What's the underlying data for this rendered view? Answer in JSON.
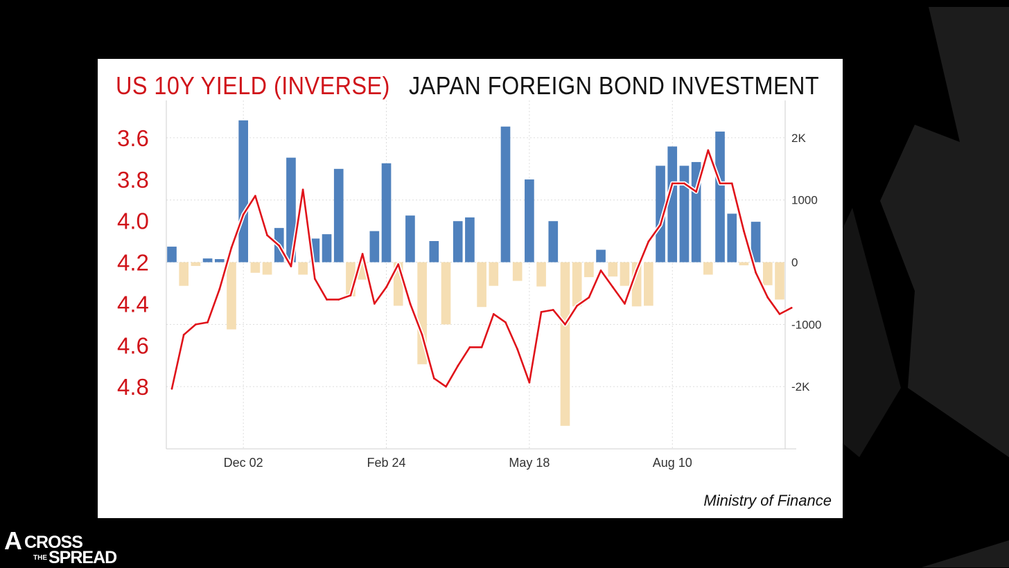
{
  "titles": {
    "left": "US 10Y YIELD (INVERSE)",
    "right": "JAPAN FOREIGN BOND INVESTMENT"
  },
  "source": "Ministry of Finance",
  "logo": {
    "a": "A",
    "cross": "CROSS",
    "the": "THE",
    "spread": "SPREAD"
  },
  "colors": {
    "positive_bar": "#4f81bd",
    "negative_bar": "#f5deb3",
    "yield_line": "#e0131a",
    "left_axis_text": "#d0141a"
  },
  "chart_data": {
    "type": "bar",
    "title": "JAPAN FOREIGN BOND INVESTMENT",
    "xlabel": "",
    "ylabel": "",
    "x_ticks": [
      "Dec 02",
      "Feb 24",
      "May 18",
      "Aug 10"
    ],
    "x_tick_week_index": [
      6,
      18,
      30,
      42
    ],
    "ylim_right": [
      -3000,
      2600
    ],
    "right_ticks": [
      "2K",
      "1000",
      "0",
      "-1000",
      "-2K"
    ],
    "right_tick_values": [
      2000,
      1000,
      0,
      -1000,
      -2000
    ],
    "left_axis_inverted": true,
    "left_ticks": [
      "3.6",
      "3.8",
      "4.0",
      "4.2",
      "4.4",
      "4.6",
      "4.8"
    ],
    "left_tick_values": [
      3.6,
      3.8,
      4.0,
      4.2,
      4.4,
      4.6,
      4.8
    ],
    "grid": true,
    "series": [
      {
        "name": "JAPAN FOREIGN BOND INVESTMENT",
        "type": "bar",
        "values": [
          250,
          -380,
          -60,
          60,
          50,
          -1080,
          2280,
          -170,
          -200,
          550,
          1680,
          -200,
          380,
          450,
          1500,
          -550,
          -280,
          500,
          1590,
          -700,
          750,
          -1640,
          340,
          -1000,
          660,
          720,
          -720,
          -380,
          2180,
          -300,
          1330,
          -390,
          660,
          -2630,
          -710,
          -240,
          200,
          -230,
          -380,
          -710,
          -700,
          1550,
          1860,
          1550,
          1610,
          -200,
          2100,
          780,
          -50,
          650,
          -370,
          -600
        ]
      },
      {
        "name": "US 10Y YIELD (INVERSE)",
        "type": "line",
        "axis": "left",
        "points": [
          [
            0,
            4.81
          ],
          [
            1,
            4.55
          ],
          [
            2,
            4.5
          ],
          [
            3,
            4.49
          ],
          [
            4,
            4.33
          ],
          [
            5,
            4.13
          ],
          [
            6,
            3.97
          ],
          [
            7,
            3.88
          ],
          [
            8,
            4.07
          ],
          [
            9,
            4.12
          ],
          [
            10,
            4.22
          ],
          [
            11,
            3.85
          ],
          [
            12,
            4.28
          ],
          [
            13,
            4.38
          ],
          [
            14,
            4.38
          ],
          [
            15,
            4.36
          ],
          [
            16,
            4.16
          ],
          [
            17,
            4.4
          ],
          [
            18,
            4.32
          ],
          [
            19,
            4.21
          ],
          [
            20,
            4.4
          ],
          [
            21,
            4.55
          ],
          [
            22,
            4.76
          ],
          [
            23,
            4.8
          ],
          [
            24,
            4.7
          ],
          [
            25,
            4.61
          ],
          [
            26,
            4.61
          ],
          [
            27,
            4.45
          ],
          [
            28,
            4.49
          ],
          [
            29,
            4.62
          ],
          [
            30,
            4.78
          ],
          [
            31,
            4.44
          ],
          [
            32,
            4.43
          ],
          [
            33,
            4.5
          ],
          [
            34,
            4.41
          ],
          [
            35,
            4.37
          ],
          [
            36,
            4.24
          ],
          [
            37,
            4.32
          ],
          [
            38,
            4.4
          ],
          [
            39,
            4.24
          ],
          [
            40,
            4.1
          ],
          [
            41,
            4.02
          ],
          [
            42,
            3.82
          ],
          [
            43,
            3.82
          ],
          [
            44,
            3.86
          ],
          [
            45,
            3.66
          ],
          [
            46,
            3.82
          ],
          [
            47,
            3.82
          ],
          [
            48,
            4.05
          ],
          [
            49,
            4.25
          ],
          [
            50,
            4.37
          ],
          [
            51,
            4.45
          ],
          [
            52,
            4.42
          ]
        ]
      }
    ]
  }
}
